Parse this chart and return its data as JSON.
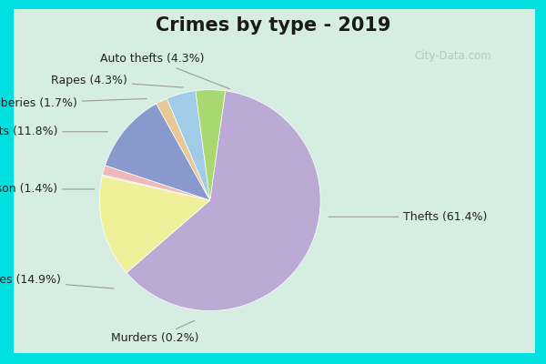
{
  "title": "Crimes by type - 2019",
  "title_fontsize": 15,
  "background_outer": "#00e0e0",
  "background_inner": "#d6ede2",
  "slices": [
    {
      "label": "Thefts",
      "pct": 61.4,
      "color": "#bbaad4"
    },
    {
      "label": "Burglaries",
      "pct": 14.9,
      "color": "#f0f09a"
    },
    {
      "label": "Murders",
      "pct": 0.2,
      "color": "#c8dfc8"
    },
    {
      "label": "Arson",
      "pct": 1.4,
      "color": "#f0b8b8"
    },
    {
      "label": "Assaults",
      "pct": 11.8,
      "color": "#8899cc"
    },
    {
      "label": "Robberies",
      "pct": 1.7,
      "color": "#e8c898"
    },
    {
      "label": "Rapes",
      "pct": 4.3,
      "color": "#a0cce8"
    },
    {
      "label": "Auto thefts",
      "pct": 4.3,
      "color": "#aad870"
    }
  ],
  "startangle": 82,
  "watermark": "City-Data.com",
  "label_fontsize": 9
}
